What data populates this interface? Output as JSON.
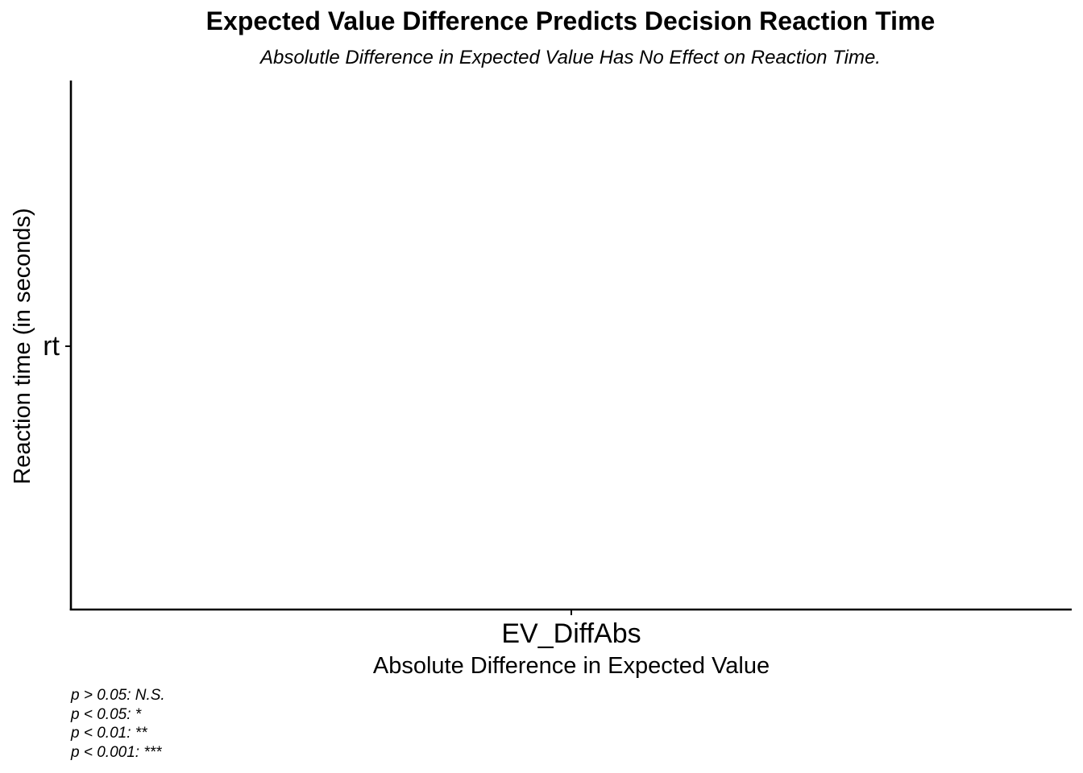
{
  "chart_data": {
    "type": "scatter",
    "title": "Expected Value Difference Predicts Decision Reaction Time",
    "subtitle": "Absolutle Difference in Expected Value Has No Effect on Reaction Time.",
    "xlabel": "Absolute Difference in Expected Value",
    "ylabel": "Reaction time (in seconds)",
    "x_categories": [
      "EV_DiffAbs"
    ],
    "y_categories": [
      "rt"
    ],
    "series": [],
    "grid": false,
    "footnotes": [
      "p > 0.05: N.S.",
      "p < 0.05: *",
      "p < 0.01: **",
      "p < 0.001: ***"
    ]
  }
}
